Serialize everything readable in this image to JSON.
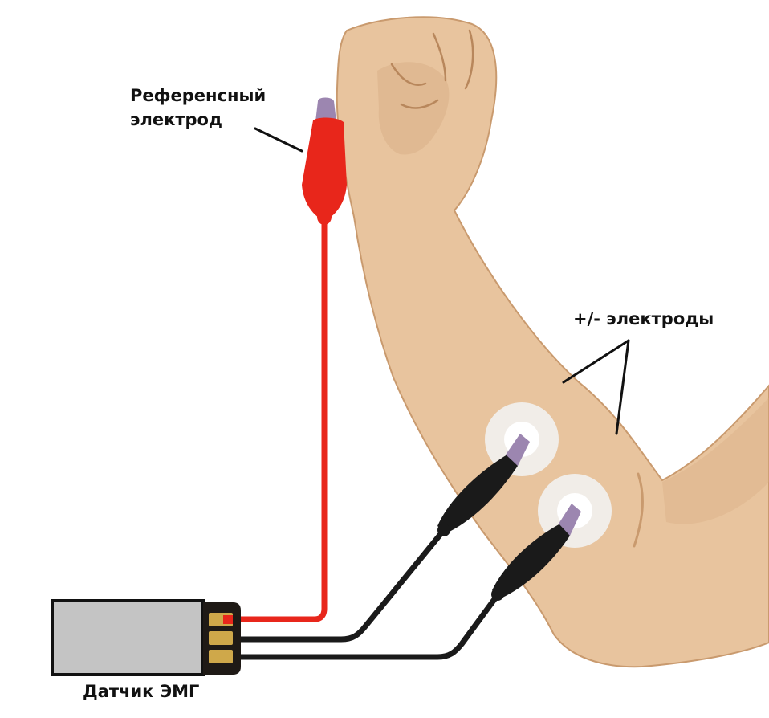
{
  "labels": {
    "reference_line1": "Референсный",
    "reference_line2": "электрод",
    "plus_minus": "+/- электроды",
    "sensor": "Датчик ЭМГ"
  },
  "colors": {
    "skin": "#e8c49e",
    "skin_shadow": "#d8ad82",
    "skin_outline": "#c99a6e",
    "red_wire": "#e8261b",
    "black_wire": "#1a1a1a",
    "pad": "#f1ede8",
    "sensor_body": "#c4c4c4",
    "sensor_border": "#111111",
    "pin_gold": "#cfa84a"
  }
}
